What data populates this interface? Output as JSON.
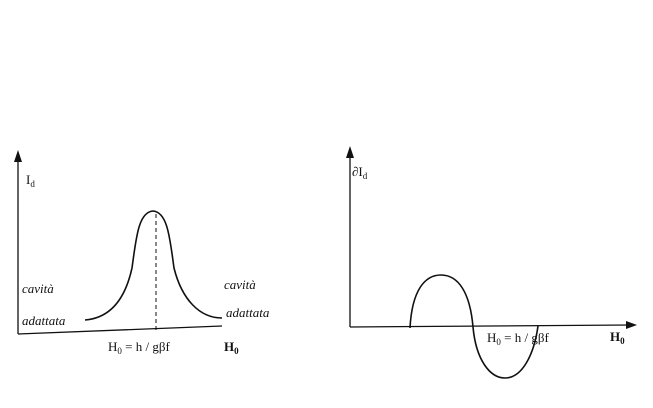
{
  "left_plot": {
    "y_label": {
      "main": "I",
      "sub": "d"
    },
    "left_annotation": {
      "line1": "cavità",
      "line2": "adattata"
    },
    "right_annotation": {
      "line1": "cavità",
      "line2": "adattata"
    },
    "peak_label": {
      "main": "H",
      "sub": "0",
      "rest": " = h / gβf"
    },
    "x_label": {
      "main": "H",
      "sub": "0"
    }
  },
  "right_plot": {
    "y_label": {
      "main": "∂I",
      "sub": "d"
    },
    "zero_label": {
      "main": "H",
      "sub": "0",
      "rest": " = h / gβf"
    },
    "x_label": {
      "main": "H",
      "sub": "0"
    }
  }
}
